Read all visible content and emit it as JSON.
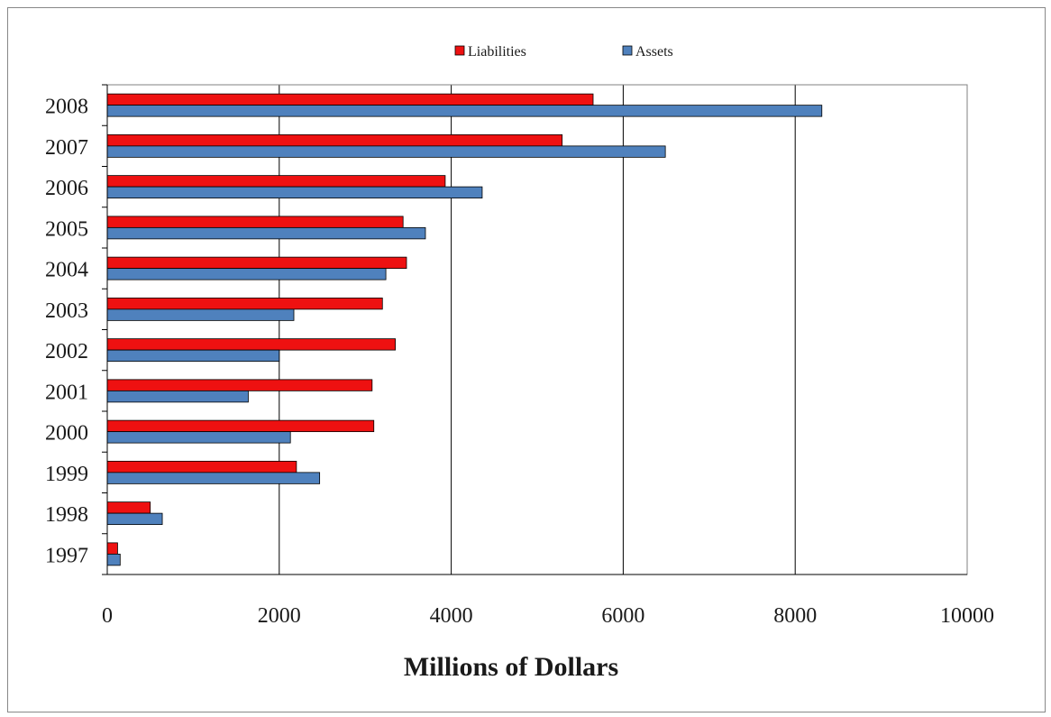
{
  "chart_data": {
    "type": "bar",
    "orientation": "horizontal",
    "categories": [
      "1997",
      "1998",
      "1999",
      "2000",
      "2001",
      "2002",
      "2003",
      "2004",
      "2005",
      "2006",
      "2007",
      "2008"
    ],
    "series": [
      {
        "name": "Liabilities",
        "color": "#ee1111",
        "values": [
          120,
          500,
          2200,
          3100,
          3080,
          3350,
          3200,
          3480,
          3440,
          3930,
          5290,
          5650
        ]
      },
      {
        "name": "Assets",
        "color": "#4f81bd",
        "values": [
          150,
          640,
          2470,
          2130,
          1640,
          2000,
          2170,
          3240,
          3700,
          4360,
          6490,
          8310
        ]
      }
    ],
    "title": "",
    "xlabel": "Millions of Dollars",
    "ylabel": "",
    "xlim": [
      0,
      10000
    ],
    "xticks": [
      "0",
      "2000",
      "4000",
      "6000",
      "8000",
      "10000"
    ],
    "grid": "vertical",
    "legend": "top-center"
  }
}
